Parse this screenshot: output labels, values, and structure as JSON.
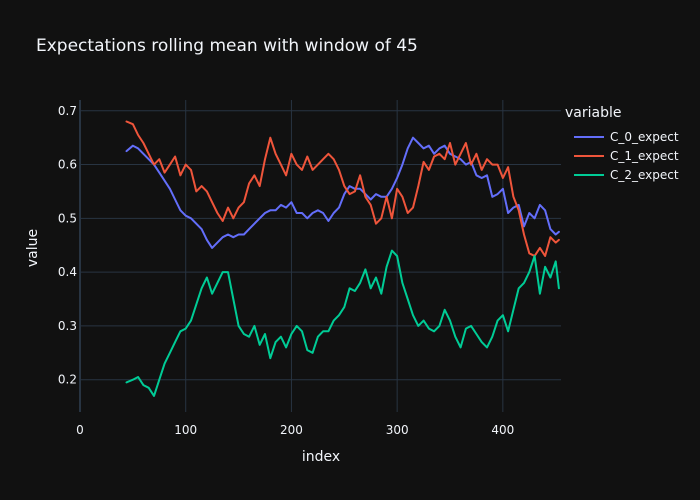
{
  "chart_data": {
    "type": "line",
    "title": "Expectations rolling mean with window of 45",
    "xlabel": "index",
    "ylabel": "value",
    "xlim": [
      0,
      455
    ],
    "ylim": [
      0.14,
      0.72
    ],
    "xticks": [
      0,
      100,
      200,
      300,
      400
    ],
    "yticks": [
      0.2,
      0.3,
      0.4,
      0.5,
      0.6,
      0.7
    ],
    "grid": true,
    "legend": {
      "title": "variable",
      "position": "top-right"
    },
    "series": [
      {
        "name": "C_0_expect",
        "color": "#636efa",
        "x": [
          44,
          50,
          55,
          60,
          65,
          70,
          75,
          80,
          85,
          90,
          95,
          100,
          105,
          110,
          115,
          120,
          125,
          130,
          135,
          140,
          145,
          150,
          155,
          160,
          165,
          170,
          175,
          180,
          185,
          190,
          195,
          200,
          205,
          210,
          215,
          220,
          225,
          230,
          235,
          240,
          245,
          250,
          255,
          260,
          265,
          270,
          275,
          280,
          285,
          290,
          295,
          300,
          305,
          310,
          315,
          320,
          325,
          330,
          335,
          340,
          345,
          350,
          355,
          360,
          365,
          370,
          375,
          380,
          385,
          390,
          395,
          400,
          405,
          410,
          415,
          420,
          425,
          430,
          435,
          440,
          445,
          450,
          453
        ],
        "y": [
          0.625,
          0.635,
          0.63,
          0.62,
          0.61,
          0.6,
          0.585,
          0.57,
          0.555,
          0.535,
          0.515,
          0.505,
          0.5,
          0.49,
          0.48,
          0.46,
          0.445,
          0.455,
          0.465,
          0.47,
          0.465,
          0.47,
          0.47,
          0.48,
          0.49,
          0.5,
          0.51,
          0.515,
          0.515,
          0.525,
          0.52,
          0.53,
          0.51,
          0.51,
          0.5,
          0.51,
          0.515,
          0.51,
          0.495,
          0.51,
          0.52,
          0.545,
          0.56,
          0.555,
          0.555,
          0.545,
          0.535,
          0.545,
          0.54,
          0.54,
          0.555,
          0.575,
          0.6,
          0.63,
          0.65,
          0.64,
          0.63,
          0.635,
          0.62,
          0.63,
          0.635,
          0.62,
          0.615,
          0.61,
          0.6,
          0.605,
          0.58,
          0.575,
          0.58,
          0.54,
          0.545,
          0.555,
          0.51,
          0.52,
          0.525,
          0.485,
          0.51,
          0.5,
          0.525,
          0.515,
          0.48,
          0.47,
          0.475
        ]
      },
      {
        "name": "C_1_expect",
        "color": "#ef553b",
        "x": [
          44,
          50,
          55,
          60,
          65,
          70,
          75,
          80,
          85,
          90,
          95,
          100,
          105,
          110,
          115,
          120,
          125,
          130,
          135,
          140,
          145,
          150,
          155,
          160,
          165,
          170,
          175,
          180,
          185,
          190,
          195,
          200,
          205,
          210,
          215,
          220,
          225,
          230,
          235,
          240,
          245,
          250,
          255,
          260,
          265,
          270,
          275,
          280,
          285,
          290,
          295,
          300,
          305,
          310,
          315,
          320,
          325,
          330,
          335,
          340,
          345,
          350,
          355,
          360,
          365,
          370,
          375,
          380,
          385,
          390,
          395,
          400,
          405,
          410,
          415,
          420,
          425,
          430,
          435,
          440,
          445,
          450,
          453
        ],
        "y": [
          0.68,
          0.675,
          0.655,
          0.64,
          0.62,
          0.6,
          0.61,
          0.585,
          0.6,
          0.615,
          0.58,
          0.6,
          0.59,
          0.55,
          0.56,
          0.55,
          0.53,
          0.51,
          0.495,
          0.52,
          0.5,
          0.52,
          0.53,
          0.565,
          0.58,
          0.56,
          0.61,
          0.65,
          0.62,
          0.6,
          0.58,
          0.62,
          0.6,
          0.59,
          0.615,
          0.59,
          0.6,
          0.61,
          0.62,
          0.61,
          0.59,
          0.56,
          0.545,
          0.55,
          0.58,
          0.54,
          0.525,
          0.49,
          0.5,
          0.54,
          0.5,
          0.555,
          0.54,
          0.51,
          0.52,
          0.56,
          0.605,
          0.59,
          0.615,
          0.62,
          0.61,
          0.64,
          0.6,
          0.62,
          0.64,
          0.6,
          0.62,
          0.59,
          0.61,
          0.6,
          0.6,
          0.575,
          0.595,
          0.54,
          0.515,
          0.47,
          0.435,
          0.43,
          0.445,
          0.43,
          0.465,
          0.455,
          0.46
        ]
      },
      {
        "name": "C_2_expect",
        "color": "#00cc96",
        "x": [
          44,
          50,
          55,
          60,
          65,
          70,
          75,
          80,
          85,
          90,
          95,
          100,
          105,
          110,
          115,
          120,
          125,
          130,
          135,
          140,
          145,
          150,
          155,
          160,
          165,
          170,
          175,
          180,
          185,
          190,
          195,
          200,
          205,
          210,
          215,
          220,
          225,
          230,
          235,
          240,
          245,
          250,
          255,
          260,
          265,
          270,
          275,
          280,
          285,
          290,
          295,
          300,
          305,
          310,
          315,
          320,
          325,
          330,
          335,
          340,
          345,
          350,
          355,
          360,
          365,
          370,
          375,
          380,
          385,
          390,
          395,
          400,
          405,
          410,
          415,
          420,
          425,
          430,
          435,
          440,
          445,
          450,
          453
        ],
        "y": [
          0.195,
          0.2,
          0.205,
          0.19,
          0.185,
          0.17,
          0.2,
          0.23,
          0.25,
          0.27,
          0.29,
          0.295,
          0.31,
          0.34,
          0.37,
          0.39,
          0.36,
          0.38,
          0.4,
          0.4,
          0.35,
          0.3,
          0.285,
          0.28,
          0.3,
          0.265,
          0.285,
          0.24,
          0.27,
          0.28,
          0.26,
          0.285,
          0.3,
          0.29,
          0.255,
          0.25,
          0.28,
          0.29,
          0.29,
          0.31,
          0.32,
          0.335,
          0.37,
          0.365,
          0.38,
          0.405,
          0.37,
          0.39,
          0.36,
          0.41,
          0.44,
          0.43,
          0.38,
          0.35,
          0.32,
          0.3,
          0.31,
          0.295,
          0.29,
          0.3,
          0.33,
          0.31,
          0.28,
          0.26,
          0.295,
          0.3,
          0.285,
          0.27,
          0.26,
          0.28,
          0.31,
          0.32,
          0.29,
          0.33,
          0.37,
          0.38,
          0.4,
          0.43,
          0.36,
          0.41,
          0.39,
          0.42,
          0.37
        ]
      }
    ]
  }
}
